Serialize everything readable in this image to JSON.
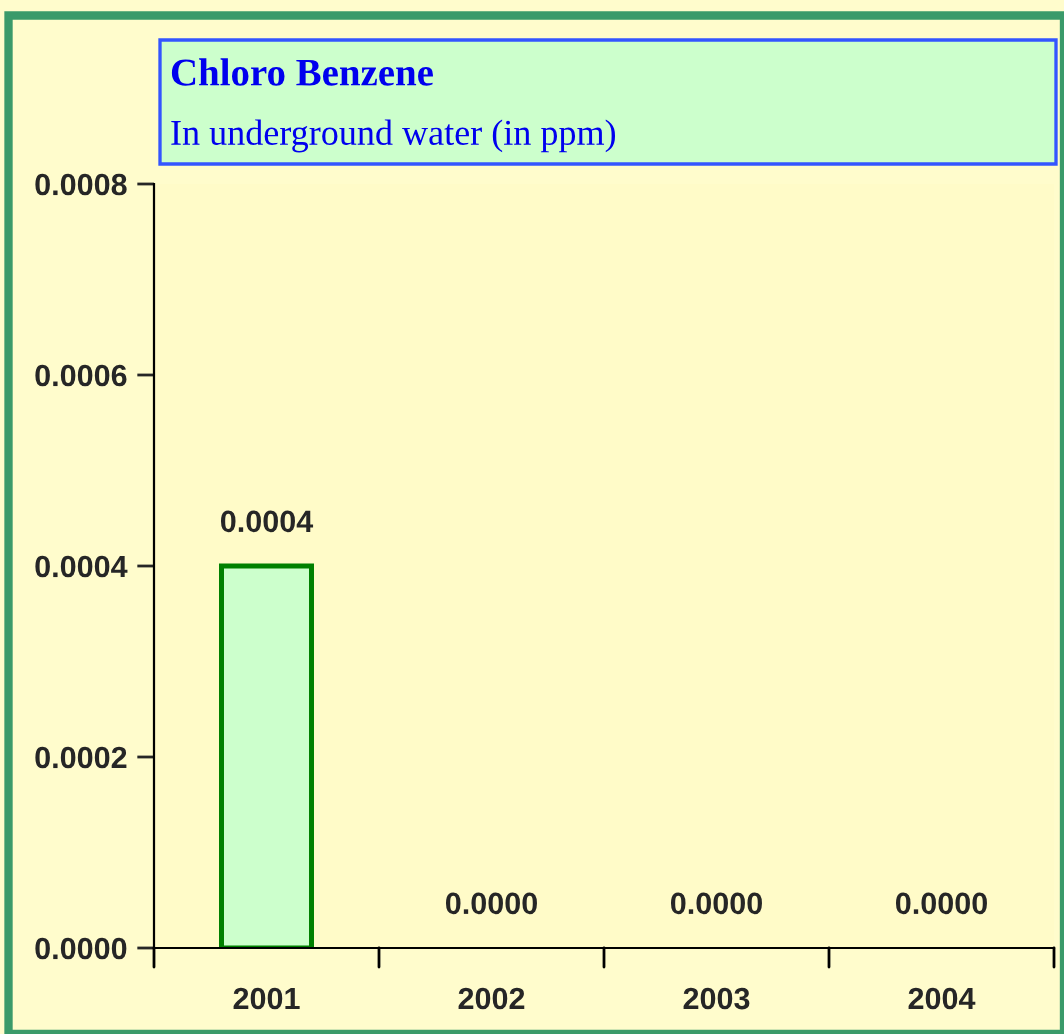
{
  "chart_data": {
    "type": "bar",
    "title": "Chloro Benzene",
    "subtitle": "In underground water (in ppm)",
    "categories": [
      "2001",
      "2002",
      "2003",
      "2004"
    ],
    "values": [
      0.0004,
      0,
      0,
      0
    ],
    "value_labels": [
      "0.0004",
      "0.0000",
      "0.0000",
      "0.0000"
    ],
    "color": "#ccffcc",
    "ylim": [
      0,
      0.0008
    ],
    "yticks": [
      {
        "value": 0,
        "label": "0.0000"
      },
      {
        "value": 0.0002,
        "label": "0.0002"
      },
      {
        "value": 0.0004,
        "label": "0.0004"
      },
      {
        "value": 0.0006,
        "label": "0.0006"
      },
      {
        "value": 0.0008,
        "label": "0.0008"
      }
    ],
    "grid": false,
    "legend": false
  }
}
